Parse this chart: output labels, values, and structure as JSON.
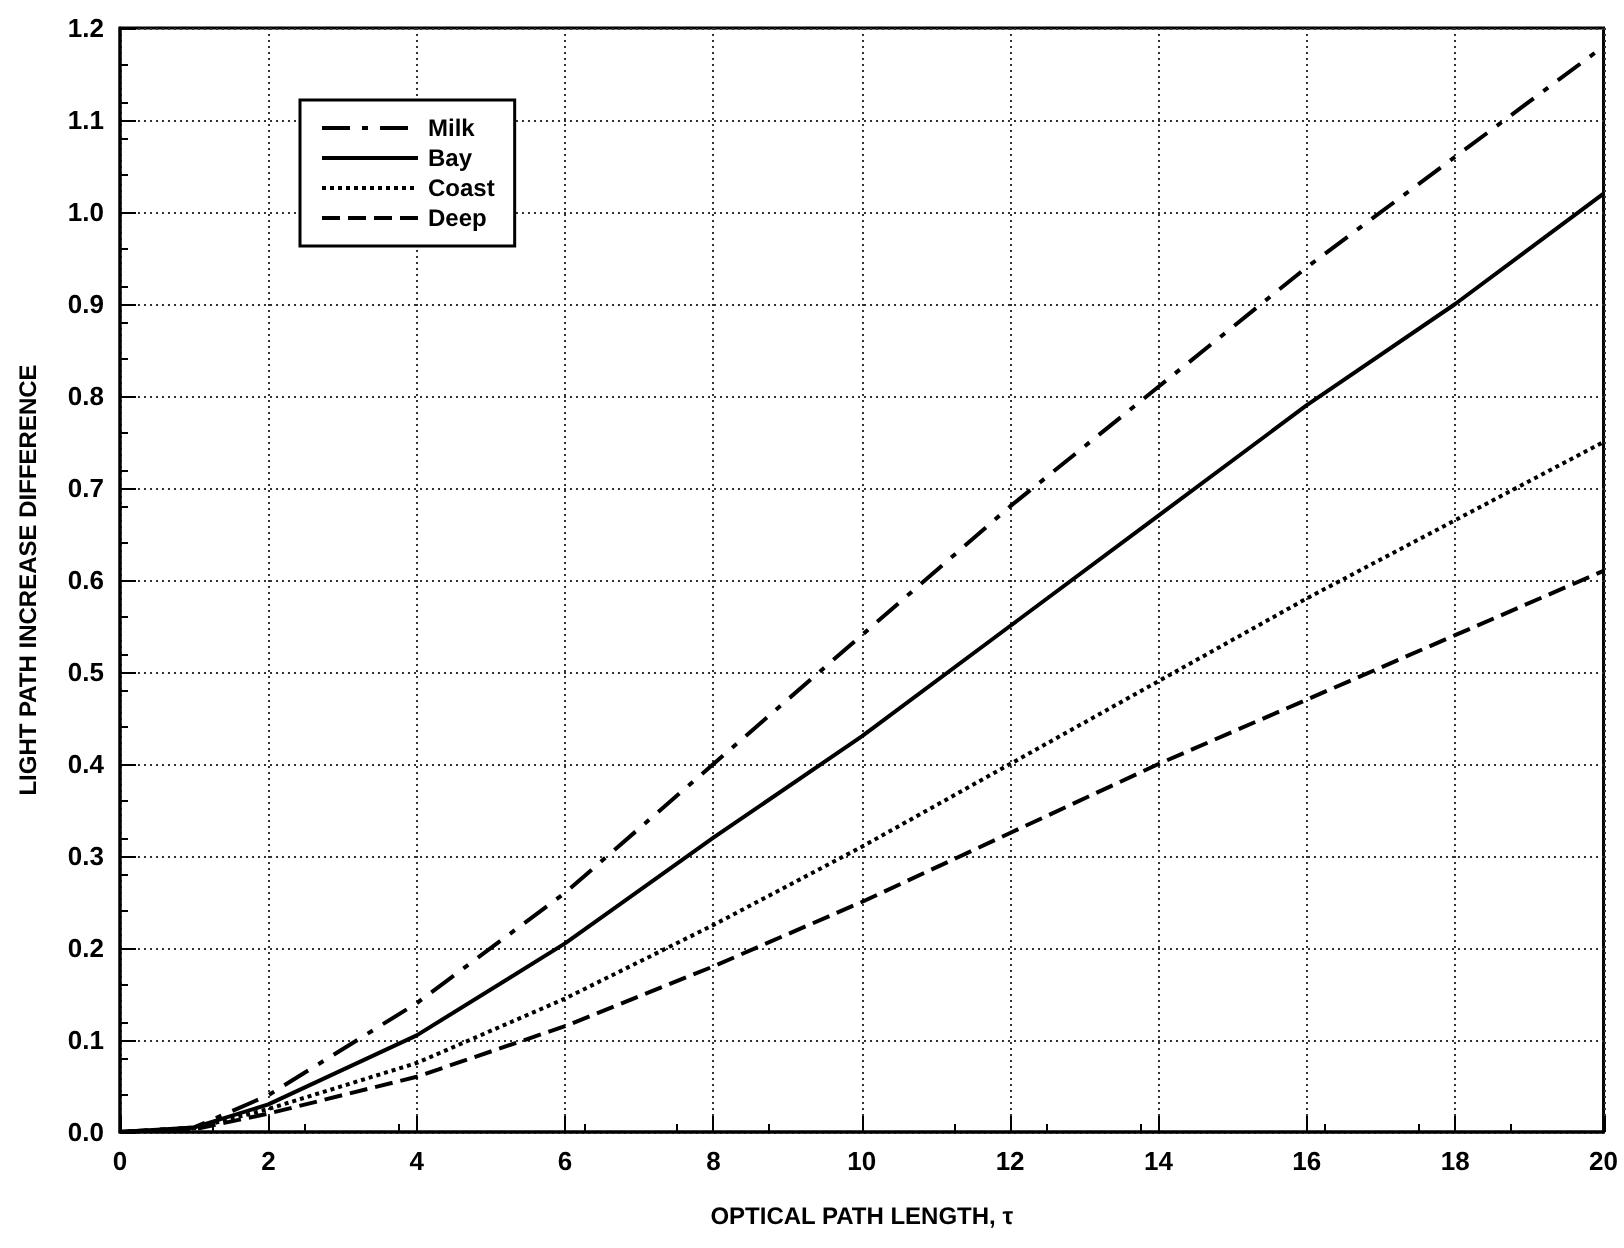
{
  "chart_data": {
    "type": "line",
    "xlabel": "OPTICAL PATH LENGTH, τ",
    "ylabel": "LIGHT PATH INCREASE DIFFERENCE",
    "x": [
      0,
      1,
      2,
      4,
      6,
      8,
      10,
      12,
      14,
      16,
      18,
      20
    ],
    "series": [
      {
        "name": "Milk",
        "color": "#000000",
        "line_style": "dashdot",
        "values": [
          0,
          0.005,
          0.04,
          0.14,
          0.26,
          0.4,
          0.54,
          0.68,
          0.81,
          0.94,
          1.06,
          1.18
        ]
      },
      {
        "name": "Bay",
        "color": "#000000",
        "line_style": "solid",
        "values": [
          0,
          0.005,
          0.03,
          0.105,
          0.205,
          0.32,
          0.43,
          0.55,
          0.67,
          0.79,
          0.9,
          1.02
        ]
      },
      {
        "name": "Coast",
        "color": "#000000",
        "line_style": "dotted",
        "values": [
          0,
          0.004,
          0.025,
          0.075,
          0.145,
          0.225,
          0.31,
          0.4,
          0.49,
          0.58,
          0.665,
          0.75
        ]
      },
      {
        "name": "Deep",
        "color": "#000000",
        "line_style": "dashed",
        "values": [
          0,
          0.003,
          0.02,
          0.06,
          0.115,
          0.18,
          0.25,
          0.325,
          0.4,
          0.47,
          0.54,
          0.61
        ]
      }
    ],
    "xlim": [
      0,
      20
    ],
    "xticks": [
      0,
      2,
      4,
      6,
      8,
      10,
      12,
      14,
      16,
      18,
      20
    ],
    "ylim": [
      0,
      1.2
    ],
    "yticks": [
      "0.0",
      0.1,
      0.2,
      0.3,
      0.4,
      0.5,
      0.6,
      0.7,
      0.8,
      0.9,
      "1.0",
      1.1,
      1.2
    ],
    "grid": true,
    "legend": "top left",
    "marker": "none"
  }
}
